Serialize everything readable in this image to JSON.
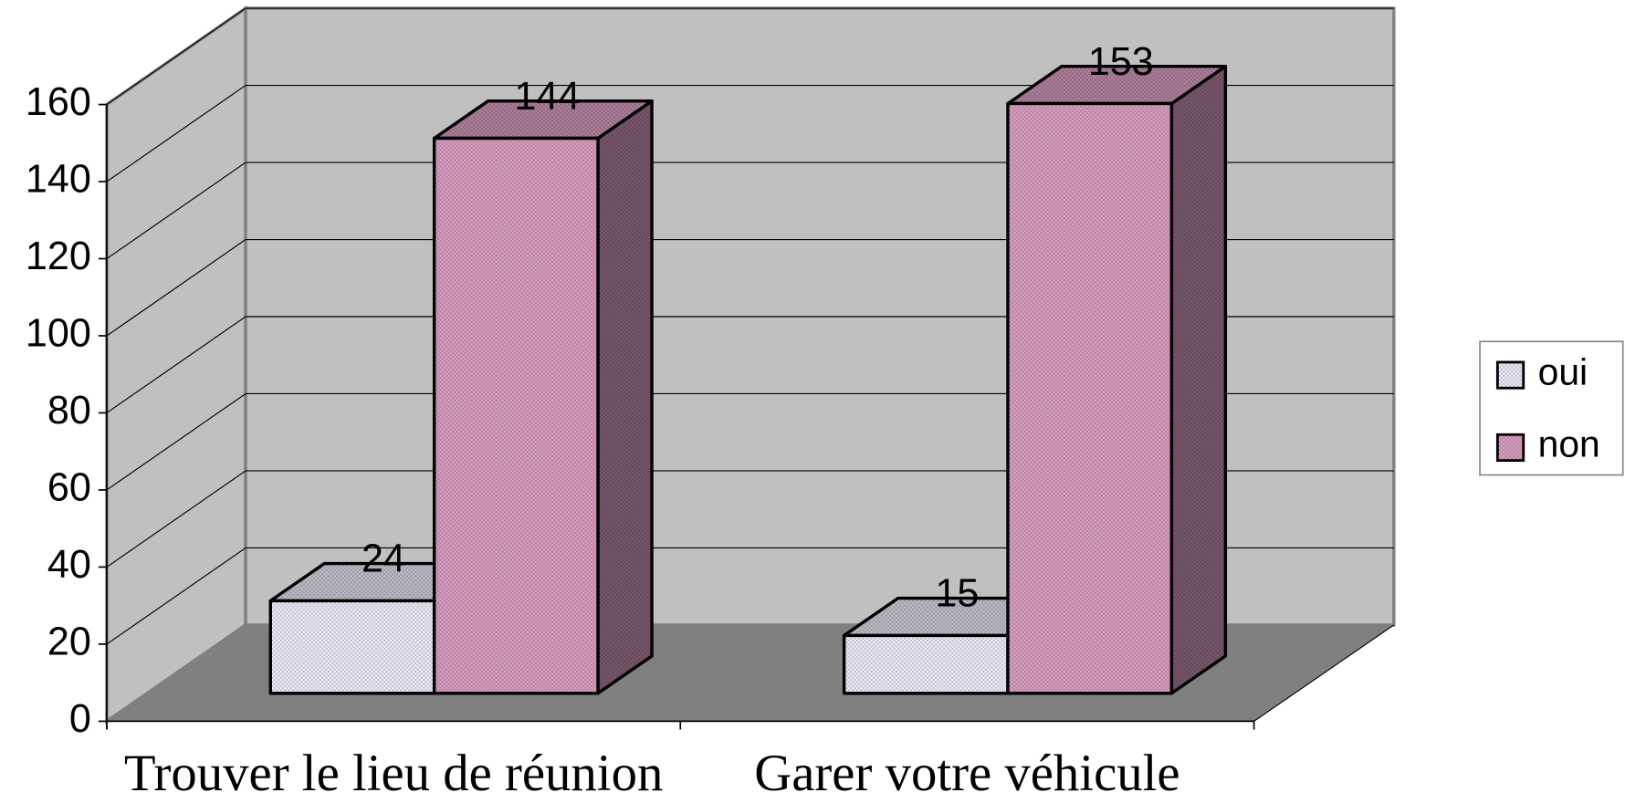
{
  "chart_data": {
    "type": "bar3d",
    "categories": [
      "Trouver le lieu de réunion",
      "Garer votre véhicule"
    ],
    "series": [
      {
        "name": "oui",
        "color": "#eeeefc",
        "values": [
          24,
          15
        ]
      },
      {
        "name": "non",
        "color": "#dca0c4",
        "values": [
          144,
          153
        ]
      }
    ],
    "ylim": [
      0,
      160
    ],
    "yticks": [
      0,
      20,
      40,
      60,
      80,
      100,
      120,
      140,
      160
    ],
    "grid": true,
    "legend": "right",
    "value_labels_shown": true
  }
}
